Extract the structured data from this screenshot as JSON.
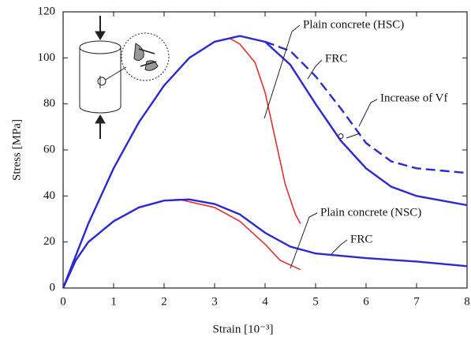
{
  "chart_data": {
    "type": "line",
    "xlabel": "Strain [10⁻³]",
    "ylabel": "Stress [MPa]",
    "xlim": [
      0,
      8
    ],
    "ylim": [
      0,
      120
    ],
    "xticks": [
      0,
      1,
      2,
      3,
      4,
      5,
      6,
      7,
      8
    ],
    "yticks": [
      0,
      20,
      40,
      60,
      80,
      100,
      120
    ],
    "series": [
      {
        "name": "Plain concrete (HSC)",
        "color": "#e03030",
        "dashed": false,
        "x": [
          0,
          0.5,
          1,
          1.5,
          2,
          2.5,
          3,
          3.3,
          3.5,
          3.8,
          4,
          4.2,
          4.4,
          4.6,
          4.7
        ],
        "values": [
          0,
          28,
          52,
          72,
          88,
          100,
          107,
          108.5,
          106,
          98,
          85,
          65,
          45,
          32,
          28
        ]
      },
      {
        "name": "FRC",
        "color": "#2a2ad0",
        "dashed": false,
        "x": [
          0,
          0.5,
          1,
          1.5,
          2,
          2.5,
          3,
          3.5,
          4,
          4.5,
          5,
          5.5,
          6,
          6.5,
          7,
          7.5,
          8
        ],
        "values": [
          0,
          28,
          52,
          72,
          88,
          100,
          107,
          109.5,
          107,
          97,
          80,
          64,
          52,
          44,
          40,
          38,
          36
        ]
      },
      {
        "name": "Increase of Vf",
        "color": "#2a2ad0",
        "dashed": true,
        "x": [
          4,
          4.5,
          5,
          5.5,
          6,
          6.5,
          7,
          7.5,
          8
        ],
        "values": [
          107,
          103,
          92,
          78,
          63,
          55,
          52,
          51,
          50
        ]
      },
      {
        "name": "Plain concrete (NSC)",
        "color": "#e03030",
        "dashed": false,
        "x": [
          2,
          2.3,
          3,
          3.5,
          4,
          4.3,
          4.7
        ],
        "values": [
          38,
          38.5,
          35,
          29,
          19,
          12,
          8
        ]
      },
      {
        "name": "FRC",
        "color": "#2a2ad0",
        "dashed": false,
        "x": [
          0,
          0.25,
          0.5,
          1,
          1.5,
          2,
          2.5,
          3,
          3.5,
          4,
          4.5,
          5,
          6,
          7,
          8
        ],
        "values": [
          0,
          12,
          20,
          29,
          35,
          38,
          38.5,
          36.5,
          32,
          24,
          18,
          15,
          13,
          11.5,
          9.5
        ]
      }
    ]
  }
}
